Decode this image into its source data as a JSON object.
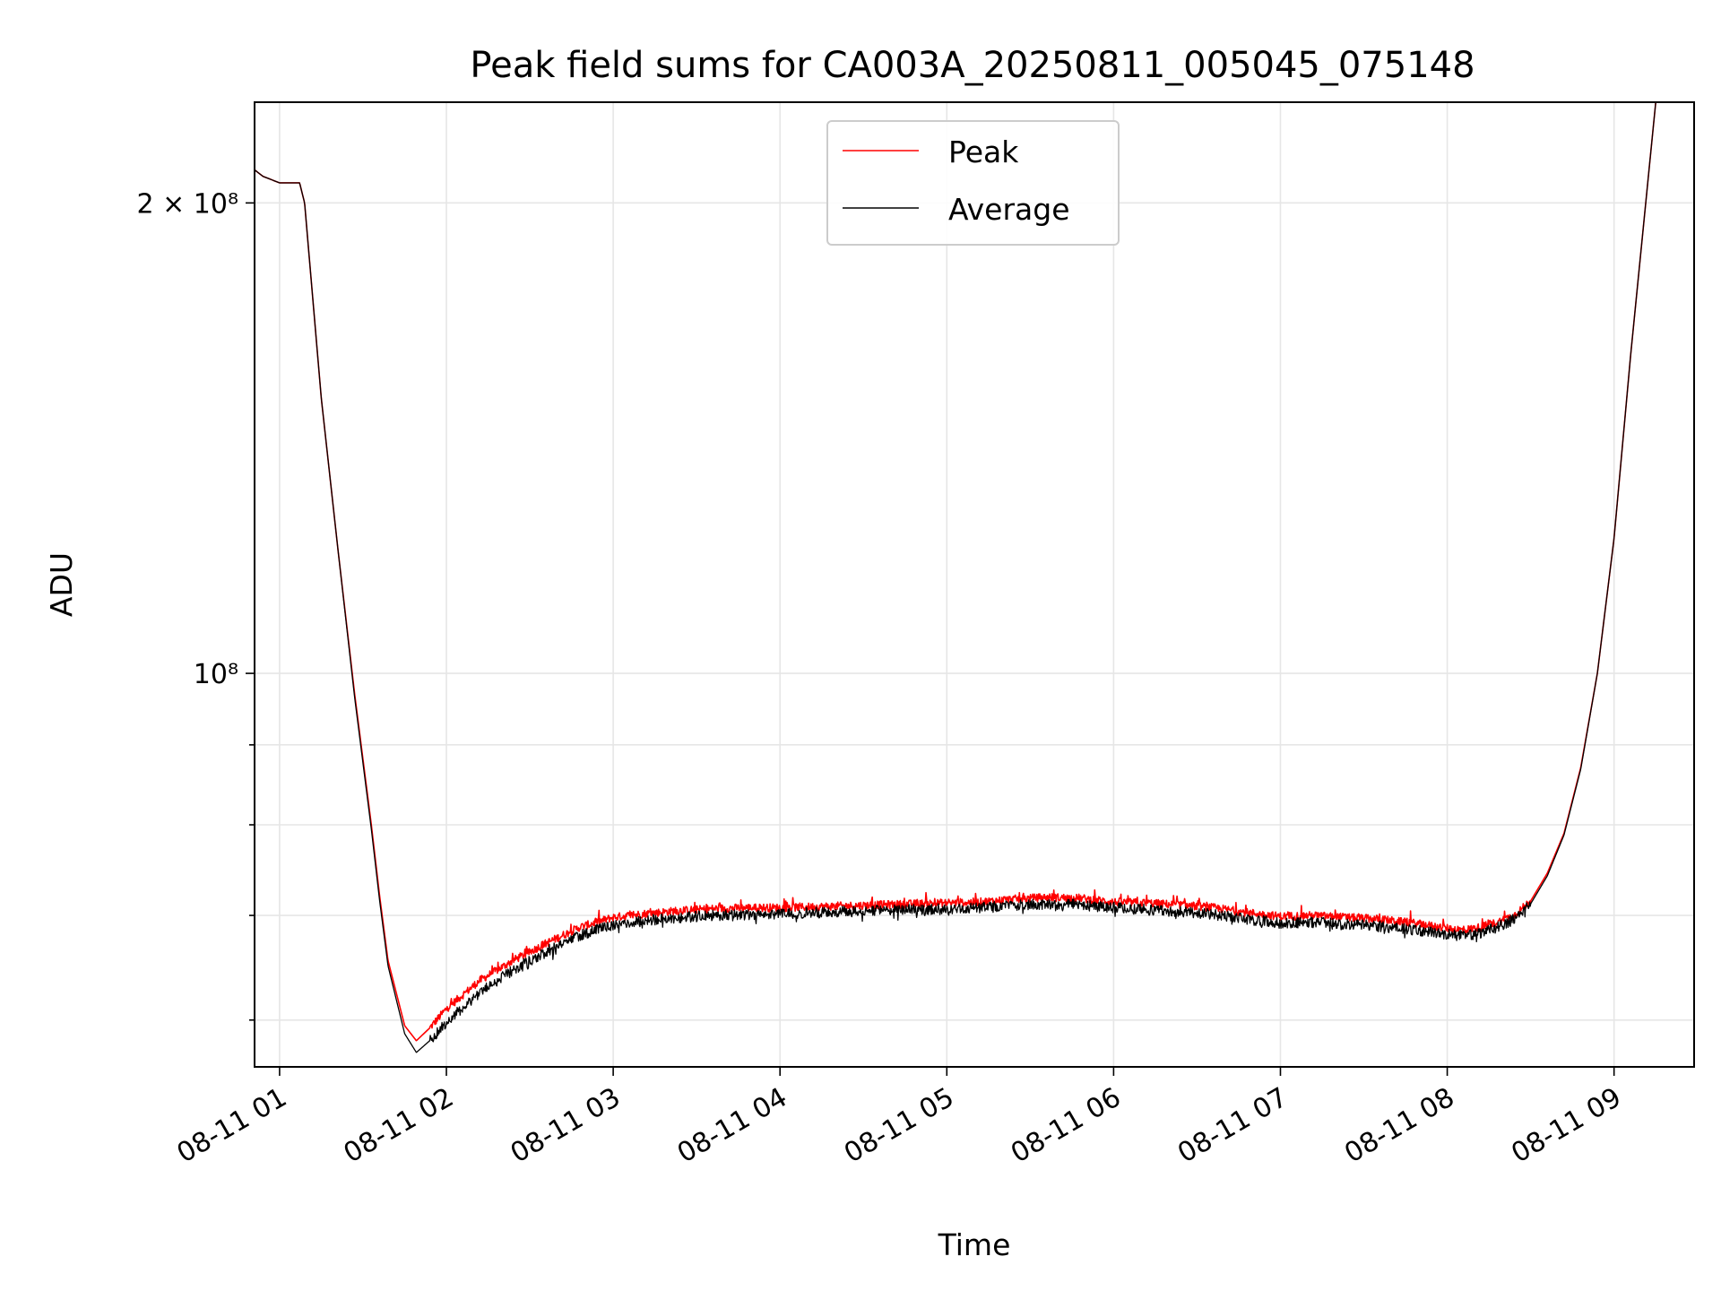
{
  "chart_data": {
    "type": "line",
    "title": "Peak field sums for CA003A_20250811_005045_075148",
    "xlabel": "Time",
    "ylabel": "ADU",
    "x_ticks": [
      "08-11 01",
      "08-11 02",
      "08-11 03",
      "08-11 04",
      "08-11 05",
      "08-11 06",
      "08-11 07",
      "08-11 08",
      "08-11 09"
    ],
    "y_ticks": [
      {
        "label": "2 × 10⁸",
        "value": 200000000
      },
      {
        "label": "10⁸",
        "value": 100000000
      }
    ],
    "y_scale": "log",
    "xlim_hours": [
      0.85,
      9.48
    ],
    "ylim": [
      56000000,
      232000000
    ],
    "grid": true,
    "legend_position": "top-center",
    "colors": {
      "peak": "#ff0000",
      "average": "#000000",
      "grid": "#e6e6e6"
    },
    "series": [
      {
        "name": "Peak",
        "color": "#ff0000",
        "x_hours": [
          0.85,
          0.9,
          1.0,
          1.12,
          1.15,
          1.25,
          1.35,
          1.45,
          1.55,
          1.6,
          1.65,
          1.75,
          1.82,
          1.9,
          2.0,
          2.2,
          2.4,
          2.6,
          2.8,
          3.0,
          3.2,
          3.4,
          3.6,
          3.8,
          4.0,
          4.2,
          4.4,
          4.6,
          4.8,
          5.0,
          5.2,
          5.4,
          5.6,
          5.8,
          6.0,
          6.2,
          6.4,
          6.6,
          6.8,
          7.0,
          7.2,
          7.4,
          7.6,
          7.8,
          8.0,
          8.1,
          8.2,
          8.3,
          8.4,
          8.5,
          8.6,
          8.7,
          8.8,
          8.9,
          9.0,
          9.1,
          9.2,
          9.25
        ],
        "y": [
          210000000,
          208000000,
          206000000,
          206000000,
          200000000,
          150000000,
          120000000,
          97000000,
          80000000,
          72000000,
          65500000,
          59500000,
          58200000,
          59300000,
          61000000,
          63600000,
          65500000,
          67200000,
          68800000,
          69800000,
          70200000,
          70500000,
          70700000,
          70800000,
          70800000,
          70900000,
          71000000,
          71100000,
          71200000,
          71300000,
          71400000,
          71700000,
          71900000,
          71800000,
          71400000,
          71300000,
          71100000,
          70800000,
          70300000,
          69900000,
          70000000,
          69800000,
          69600000,
          69200000,
          68700000,
          68500000,
          68800000,
          69300000,
          70000000,
          71500000,
          74500000,
          79000000,
          87000000,
          100000000,
          122000000,
          160000000,
          205000000,
          232000000
        ]
      },
      {
        "name": "Average",
        "color": "#000000",
        "x_hours": [
          0.85,
          0.9,
          1.0,
          1.12,
          1.15,
          1.25,
          1.35,
          1.45,
          1.55,
          1.6,
          1.65,
          1.75,
          1.82,
          1.9,
          2.0,
          2.2,
          2.4,
          2.6,
          2.8,
          3.0,
          3.2,
          3.4,
          3.6,
          3.8,
          4.0,
          4.2,
          4.4,
          4.6,
          4.8,
          5.0,
          5.2,
          5.4,
          5.6,
          5.8,
          6.0,
          6.2,
          6.4,
          6.6,
          6.8,
          7.0,
          7.2,
          7.4,
          7.6,
          7.8,
          8.0,
          8.1,
          8.2,
          8.3,
          8.4,
          8.5,
          8.6,
          8.7,
          8.8,
          8.9,
          9.0,
          9.1,
          9.2,
          9.25
        ],
        "y": [
          210000000,
          208000000,
          206000000,
          206000000,
          200000000,
          150000000,
          120000000,
          96500000,
          79500000,
          71500000,
          65000000,
          58800000,
          57200000,
          58200000,
          59800000,
          62500000,
          64600000,
          66400000,
          68000000,
          69000000,
          69500000,
          69800000,
          70000000,
          70100000,
          70200000,
          70300000,
          70400000,
          70500000,
          70600000,
          70700000,
          70800000,
          71000000,
          71200000,
          71100000,
          70800000,
          70600000,
          70400000,
          70100000,
          69600000,
          69200000,
          69300000,
          69100000,
          68900000,
          68500000,
          68100000,
          67900000,
          68200000,
          68800000,
          69600000,
          71200000,
          74200000,
          78800000,
          86800000,
          100000000,
          122000000,
          160000000,
          205000000,
          232000000
        ]
      }
    ]
  }
}
